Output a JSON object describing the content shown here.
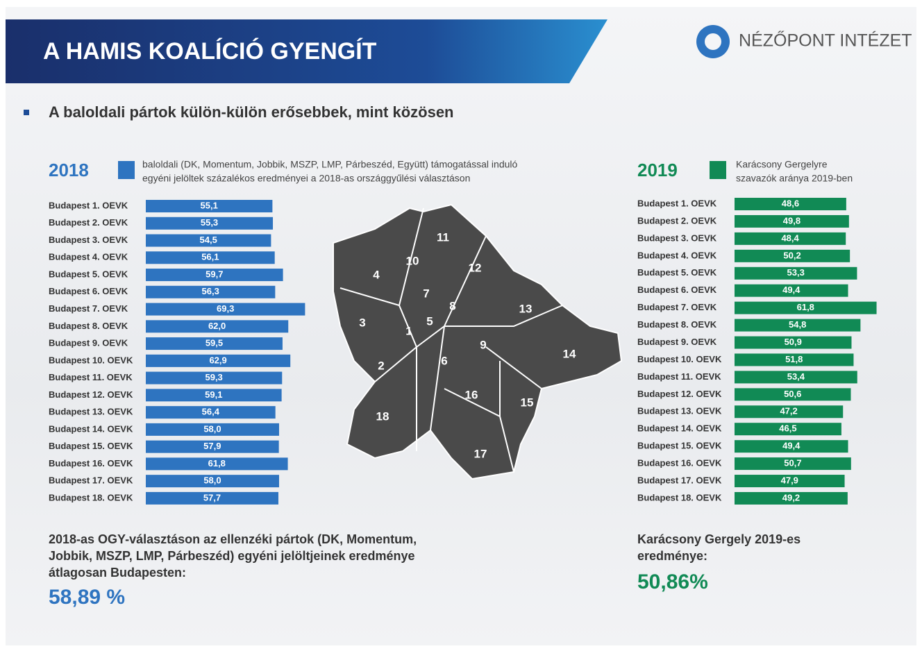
{
  "header": {
    "title": "A HAMIS KOALÍCIÓ GYENGÍT",
    "logo": "NÉZŐPONT INTÉZET"
  },
  "subtitle": "A baloldali pártok külön-külön erősebbek, mint közösen",
  "chart_data": [
    {
      "type": "bar",
      "label": "2018",
      "color": "#2e74c0",
      "legend": [
        "baloldali (DK, Momentum, Jobbik, MSZP, LMP, Párbeszéd, Együtt) támogatással induló",
        "egyéni jelöltek százalékos eredményei a 2018-as országgyűlési választáson"
      ],
      "categories": [
        "Budapest 1. OEVK",
        "Budapest 2. OEVK",
        "Budapest 3. OEVK",
        "Budapest 4. OEVK",
        "Budapest 5. OEVK",
        "Budapest 6. OEVK",
        "Budapest 7. OEVK",
        "Budapest 8. OEVK",
        "Budapest 9. OEVK",
        "Budapest 10. OEVK",
        "Budapest 11. OEVK",
        "Budapest 12. OEVK",
        "Budapest 13. OEVK",
        "Budapest 14.  OEVK",
        "Budapest 15. OEVK",
        "Budapest 16. OEVK",
        "Budapest 17. OEVK",
        "Budapest 18. OEVK"
      ],
      "values": [
        55.1,
        55.3,
        54.5,
        56.1,
        59.7,
        56.3,
        69.3,
        62.0,
        59.5,
        62.9,
        59.3,
        59.1,
        56.4,
        58.0,
        57.9,
        61.8,
        58.0,
        57.7
      ],
      "value_labels": [
        "55,1",
        "55,3",
        "54,5",
        "56,1",
        "59,7",
        "56,3",
        "69,3",
        "62,0",
        "59,5",
        "62,9",
        "59,3",
        "59,1",
        "56,4",
        "58,0",
        "57,9",
        "61,8",
        "58,0",
        "57,7"
      ]
    },
    {
      "type": "bar",
      "label": "2019",
      "color": "#118a55",
      "legend": [
        "Karácsony Gergelyre",
        "szavazók aránya 2019-ben"
      ],
      "categories": [
        "Budapest 1. OEVK",
        "Budapest 2. OEVK",
        "Budapest 3. OEVK",
        "Budapest 4. OEVK",
        "Budapest 5. OEVK",
        "Budapest 6. OEVK",
        "Budapest 7. OEVK",
        "Budapest 8. OEVK",
        "Budapest 9. OEVK",
        "Budapest 10. OEVK",
        "Budapest 11. OEVK",
        "Budapest 12. OEVK",
        "Budapest 13. OEVK",
        "Budapest 14.  OEVK",
        "Budapest 15. OEVK",
        "Budapest 16. OEVK",
        "Budapest 17. OEVK",
        "Budapest 18. OEVK"
      ],
      "values": [
        48.6,
        49.8,
        48.4,
        50.2,
        53.3,
        49.4,
        61.8,
        54.8,
        50.9,
        51.8,
        53.4,
        50.6,
        47.2,
        46.5,
        49.4,
        50.7,
        47.9,
        49.2
      ],
      "value_labels": [
        "48,6",
        "49,8",
        "48,4",
        "50,2",
        "53,3",
        "49,4",
        "61,8",
        "54,8",
        "50,9",
        "51,8",
        "53,4",
        "50,6",
        "47,2",
        "46,5",
        "49,4",
        "50,7",
        "47,9",
        "49,2"
      ]
    }
  ],
  "map": {
    "districts": [
      "1",
      "2",
      "3",
      "4",
      "5",
      "6",
      "7",
      "8",
      "9",
      "10",
      "11",
      "12",
      "13",
      "14",
      "15",
      "16",
      "17",
      "18"
    ]
  },
  "summary_left": {
    "lines": [
      "2018-as OGY-választáson az ellenzéki pártok (DK, Momentum,",
      "Jobbik, MSZP, LMP, Párbeszéd) egyéni jelöltjeinek eredménye",
      "átlagosan Budapesten:"
    ],
    "value": "58,89 %"
  },
  "summary_right": {
    "lines": [
      "Karácsony Gergely 2019-es",
      "eredménye:"
    ],
    "value": "50,86%"
  }
}
